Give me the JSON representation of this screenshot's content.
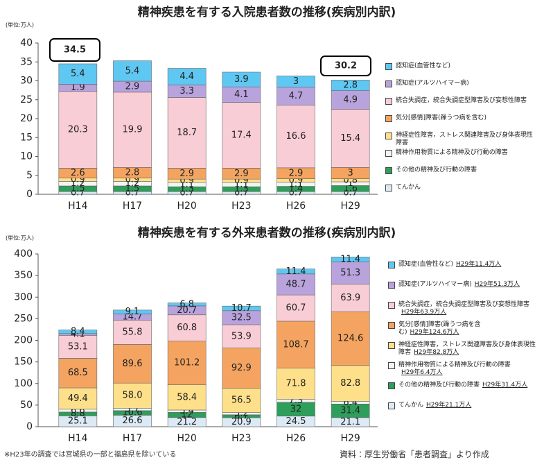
{
  "chart_data": [
    {
      "type": "bar",
      "stacked": true,
      "title": "精神疾患を有する入院患者数の推移(疾病別内訳)",
      "y_label": "(単位:万人)",
      "categories": [
        "H14",
        "H17",
        "H20",
        "H23",
        "H26",
        "H29"
      ],
      "ylim": [
        0,
        40
      ],
      "yticks": [
        0,
        5,
        10,
        15,
        20,
        25,
        30,
        35,
        40
      ],
      "grid": false,
      "annotations": [
        "34.5",
        "30.2"
      ],
      "series": [
        {
          "name": "てんかん",
          "color": "#dceaf6",
          "values": [
            0.7,
            0.7,
            0.7,
            0.7,
            0.7,
            0.7
          ]
        },
        {
          "name": "その他の精神及び行動の障害",
          "color": "#2e9e5b",
          "values": [
            1.5,
            1.5,
            1.3,
            1.3,
            1.4,
            1.6
          ]
        },
        {
          "name": "精神作用物質による精神及び行動の障害",
          "color": "#f4f4f4",
          "values": [
            1.2,
            1.2,
            1.1,
            1.1,
            1.1,
            1.0
          ]
        },
        {
          "name": "神経症性障害，ストレス関連障害及び身体表現性障害",
          "color": "#ffe08a",
          "values": [
            0.9,
            0.9,
            0.9,
            0.9,
            0.9,
            0.8
          ]
        },
        {
          "name": "気分[感情]障害(躁うつ病を含む)",
          "color": "#f4a460",
          "values": [
            2.6,
            2.8,
            2.9,
            2.9,
            2.9,
            3.0
          ]
        },
        {
          "name": "統合失調症，統合失調症型障害及び妄想性障害",
          "color": "#f9cdd6",
          "values": [
            20.3,
            19.9,
            18.7,
            17.4,
            16.6,
            15.4
          ]
        },
        {
          "name": "認知症(アルツハイマー病)",
          "color": "#b9a3dc",
          "values": [
            1.9,
            2.9,
            3.3,
            4.1,
            4.7,
            4.9
          ]
        },
        {
          "name": "認知症(血管性など)",
          "color": "#5ec8f2",
          "values": [
            5.4,
            5.4,
            4.4,
            3.9,
            3.0,
            2.8
          ]
        }
      ]
    },
    {
      "type": "bar",
      "stacked": true,
      "title": "精神疾患を有する外来患者数の推移(疾病別内訳)",
      "y_label": "(単位:万人)",
      "categories": [
        "H14",
        "H17",
        "H20",
        "H23",
        "H26",
        "H29"
      ],
      "ylim": [
        0,
        400
      ],
      "yticks": [
        0,
        50,
        100,
        150,
        200,
        250,
        300,
        350,
        400
      ],
      "grid": false,
      "series": [
        {
          "name": "てんかん",
          "note": "H29年21.1万人",
          "color": "#dceaf6",
          "values": [
            25.1,
            26.6,
            21.2,
            20.9,
            24.5,
            21.1
          ]
        },
        {
          "name": "その他の精神及び行動の障害",
          "note": "H29年31.4万人",
          "color": "#2e9e5b",
          "values": [
            8.8,
            10.6,
            12.0,
            6.7,
            32.0,
            31.4
          ]
        },
        {
          "name": "精神作用物質による精神及び行動の障害",
          "note": "H29年6.4万人",
          "color": "#f4f4f4",
          "values": [
            6.6,
            5.7,
            5.4,
            5.2,
            7.3,
            6.4
          ]
        },
        {
          "name": "神経症性障害，ストレス関連障害及び身体表現性障害",
          "note": "H29年82.8万人",
          "color": "#ffe08a",
          "values": [
            49.4,
            58.0,
            58.4,
            56.5,
            71.8,
            82.8
          ],
          "value_labels": [
            "49.4",
            "58.0",
            "58.4",
            "56.5",
            "71.8",
            "82.8"
          ]
        },
        {
          "name": "気分[感情]障害(躁うつ病を含む)",
          "note": "H29年124.6万人",
          "color": "#f4a460",
          "values": [
            68.5,
            89.6,
            101.2,
            92.9,
            108.7,
            124.6
          ]
        },
        {
          "name": "統合失調症，統合失調症型障害及び妄想性障害",
          "note": "H29年63.9万人",
          "color": "#f9cdd6",
          "values": [
            53.1,
            55.8,
            60.8,
            53.9,
            60.7,
            63.9
          ]
        },
        {
          "name": "認知症(アルツハイマー病)",
          "note": "H29年51.3万人",
          "color": "#b9a3dc",
          "values": [
            4.1,
            14.7,
            20.7,
            32.5,
            48.7,
            51.3
          ]
        },
        {
          "name": "認知症(血管性など)",
          "note": "H29年11.4万人",
          "color": "#5ec8f2",
          "values": [
            8.4,
            9.1,
            6.8,
            10.7,
            11.4,
            11.4
          ]
        }
      ]
    }
  ],
  "footnotes": [
    "※H23年の調査では宮城県の一部と福島県を除いている",
    "資料：厚生労働省「患者調査」より作成"
  ]
}
